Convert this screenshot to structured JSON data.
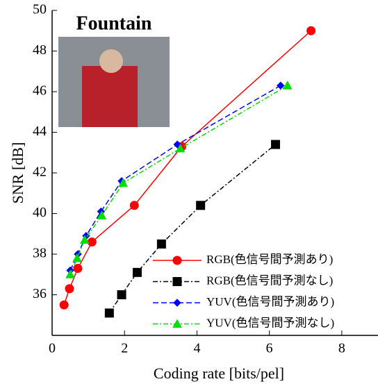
{
  "chart_data": {
    "type": "line",
    "title": "Fountain",
    "x_label": "Coding rate [bits/pel]",
    "y_label": "SNR [dB]",
    "xlim": [
      0,
      9
    ],
    "ylim": [
      34,
      50
    ],
    "xticks": [
      0,
      2,
      4,
      6,
      8
    ],
    "yticks": [
      36,
      38,
      40,
      42,
      44,
      46,
      48,
      50
    ],
    "legend": "lower right",
    "series": [
      {
        "name": "RGB(色信号間予測あり)",
        "color": "#ff0000",
        "marker": "circle",
        "dash": "solid",
        "x": [
          0.33,
          0.48,
          0.71,
          1.1,
          2.27,
          3.58,
          7.15
        ],
        "values": [
          35.5,
          36.3,
          37.3,
          38.6,
          40.4,
          43.3,
          49.0
        ]
      },
      {
        "name": "RGB(色信号間予測なし)",
        "color": "#000000",
        "marker": "square",
        "dash": "dashdot",
        "x": [
          1.58,
          1.92,
          2.35,
          3.02,
          4.1,
          6.17
        ],
        "values": [
          35.1,
          36.0,
          37.1,
          38.5,
          40.4,
          43.4
        ]
      },
      {
        "name": "YUV(色信号間予測あり)",
        "color": "#0000ff",
        "marker": "diamond",
        "dash": "dashed",
        "x": [
          0.5,
          0.71,
          0.94,
          1.35,
          1.92,
          3.46,
          6.31
        ],
        "values": [
          37.2,
          38.0,
          38.9,
          40.1,
          41.6,
          43.4,
          46.3
        ]
      },
      {
        "name": "YUV(色信号間予測なし)",
        "color": "#00dd00",
        "marker": "triangle",
        "dash": "dashdot",
        "x": [
          0.5,
          0.69,
          0.9,
          1.37,
          1.96,
          3.54,
          6.5
        ],
        "values": [
          37.0,
          37.8,
          38.7,
          39.9,
          41.5,
          43.2,
          46.3
        ]
      }
    ]
  }
}
